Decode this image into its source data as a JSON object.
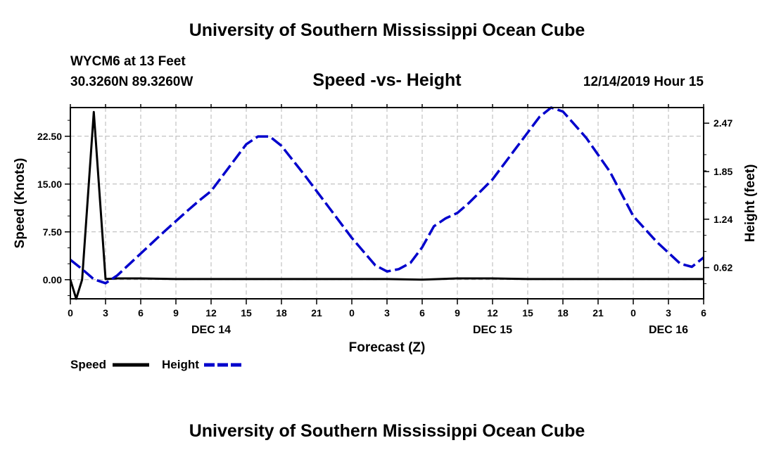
{
  "header": {
    "title": "University of Southern Mississippi Ocean Cube",
    "station_line": "WYCM6 at 13 Feet",
    "coords_line": "30.3260N 89.3260W",
    "datetime": "12/14/2019 Hour 15"
  },
  "footer": {
    "title": "University of Southern Mississippi Ocean Cube"
  },
  "colors": {
    "speed": "#000000",
    "height": "#0000cc",
    "grid": "#b4b4b4"
  },
  "chart_data": {
    "type": "line",
    "title": "Speed -vs- Height",
    "xlabel": "Forecast (Z)",
    "ylabel_left": "Speed (Knots)",
    "ylabel_right": "Height (feet)",
    "x_range_hours": [
      0,
      54
    ],
    "y_left_range": [
      -3,
      27
    ],
    "y_right_range": [
      0.22,
      2.67
    ],
    "x_ticks": [
      {
        "hour": 0,
        "label": "0"
      },
      {
        "hour": 3,
        "label": "3"
      },
      {
        "hour": 6,
        "label": "6"
      },
      {
        "hour": 9,
        "label": "9"
      },
      {
        "hour": 12,
        "label": "12"
      },
      {
        "hour": 15,
        "label": "15"
      },
      {
        "hour": 18,
        "label": "18"
      },
      {
        "hour": 21,
        "label": "21"
      },
      {
        "hour": 24,
        "label": "0"
      },
      {
        "hour": 27,
        "label": "3"
      },
      {
        "hour": 30,
        "label": "6"
      },
      {
        "hour": 33,
        "label": "9"
      },
      {
        "hour": 36,
        "label": "12"
      },
      {
        "hour": 39,
        "label": "15"
      },
      {
        "hour": 42,
        "label": "18"
      },
      {
        "hour": 45,
        "label": "21"
      },
      {
        "hour": 48,
        "label": "0"
      },
      {
        "hour": 51,
        "label": "3"
      },
      {
        "hour": 54,
        "label": "6"
      }
    ],
    "date_labels": [
      {
        "hour": 12,
        "label": "DEC 14"
      },
      {
        "hour": 36,
        "label": "DEC 15"
      },
      {
        "hour": 51,
        "label": "DEC 16"
      }
    ],
    "y_left_ticks": [
      {
        "value": 0,
        "label": "0.00"
      },
      {
        "value": 7.5,
        "label": "7.50"
      },
      {
        "value": 15,
        "label": "15.00"
      },
      {
        "value": 22.5,
        "label": "22.50"
      }
    ],
    "y_right_ticks": [
      {
        "value": 0.62,
        "label": "0.62"
      },
      {
        "value": 1.24,
        "label": "1.24"
      },
      {
        "value": 1.85,
        "label": "1.85"
      },
      {
        "value": 2.47,
        "label": "2.47"
      }
    ],
    "series": [
      {
        "name": "Speed",
        "axis": "left",
        "style": "solid",
        "x": [
          0,
          0.5,
          1,
          2,
          3,
          4,
          6,
          9,
          12,
          15,
          18,
          21,
          24,
          27,
          30,
          33,
          36,
          39,
          42,
          45,
          48,
          51,
          54
        ],
        "values": [
          0,
          -3,
          0,
          26.3,
          0.1,
          0.2,
          0.2,
          0.1,
          0.1,
          0.1,
          0.1,
          0.1,
          0.1,
          0.1,
          0,
          0.2,
          0.2,
          0.1,
          0.1,
          0.1,
          0.1,
          0.1,
          0.1
        ]
      },
      {
        "name": "Height",
        "axis": "right",
        "style": "dashed",
        "x": [
          0,
          1,
          2,
          3,
          4,
          6,
          8,
          10,
          11,
          12,
          14,
          15,
          16,
          17,
          18,
          20,
          22,
          24,
          26,
          27,
          28,
          29,
          30,
          31,
          32,
          33,
          34,
          36,
          38,
          40,
          41,
          42,
          43,
          44,
          46,
          48,
          50,
          52,
          53,
          54
        ],
        "values": [
          0.72,
          0.6,
          0.47,
          0.42,
          0.52,
          0.8,
          1.08,
          1.35,
          1.48,
          1.6,
          2.0,
          2.2,
          2.3,
          2.3,
          2.18,
          1.8,
          1.4,
          1.0,
          0.65,
          0.57,
          0.6,
          0.68,
          0.88,
          1.15,
          1.25,
          1.32,
          1.45,
          1.75,
          2.15,
          2.55,
          2.67,
          2.62,
          2.45,
          2.28,
          1.85,
          1.28,
          0.95,
          0.67,
          0.63,
          0.75
        ]
      }
    ],
    "legend": [
      {
        "name": "Speed",
        "style": "solid"
      },
      {
        "name": "Height",
        "style": "dashed"
      }
    ],
    "grid": true
  }
}
